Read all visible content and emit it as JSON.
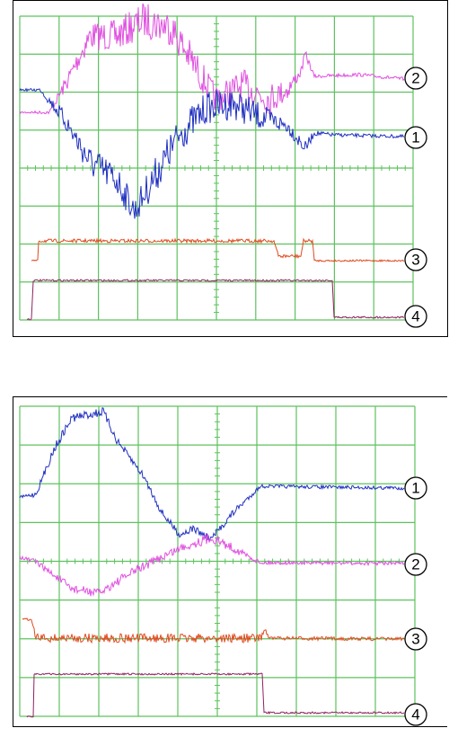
{
  "panels": [
    {
      "labels": [
        "2",
        "1",
        "3",
        "4"
      ]
    },
    {
      "labels": [
        "1",
        "2",
        "3",
        "4"
      ]
    }
  ]
}
